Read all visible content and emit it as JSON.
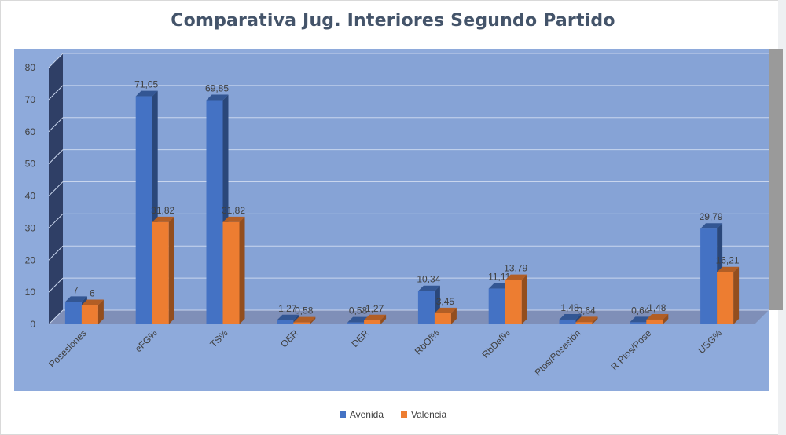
{
  "chart_data": {
    "type": "bar",
    "title": "Comparativa Jug. Interiores  Segundo Partido",
    "categories": [
      "Posesiones",
      "eFG%",
      "TS%",
      "OER",
      "DER",
      "RbOf%",
      "RbDef%",
      "Ptos/Posesión",
      "R Ptos/Pose",
      "USG%"
    ],
    "series": [
      {
        "name": "Avenida",
        "color": "#4472c4",
        "values": [
          7,
          71.05,
          69.85,
          1.27,
          0.58,
          10.34,
          11.11,
          1.48,
          0.64,
          29.79
        ],
        "labels": [
          "7",
          "71,05",
          "69,85",
          "1,27",
          "0,58",
          "10,34",
          "11,11",
          "1,48",
          "0,64",
          "29,79"
        ]
      },
      {
        "name": "Valencia",
        "color": "#ed7d31",
        "values": [
          6,
          31.82,
          31.82,
          0.58,
          1.27,
          3.45,
          13.79,
          0.64,
          1.48,
          16.21
        ],
        "labels": [
          "6",
          "31,82",
          "31,82",
          "0,58",
          "1,27",
          "3,45",
          "13,79",
          "0,64",
          "1,48",
          "16,21"
        ]
      }
    ],
    "ylim": [
      0,
      80
    ],
    "yticks": [
      "0",
      "10",
      "20",
      "30",
      "40",
      "50",
      "60",
      "70",
      "80"
    ],
    "xlabel": "",
    "ylabel": "",
    "grid": true,
    "legend": "bottom",
    "three_d": true,
    "plot_background": "#8eaadb",
    "axis_color": "#a0a0a0"
  }
}
